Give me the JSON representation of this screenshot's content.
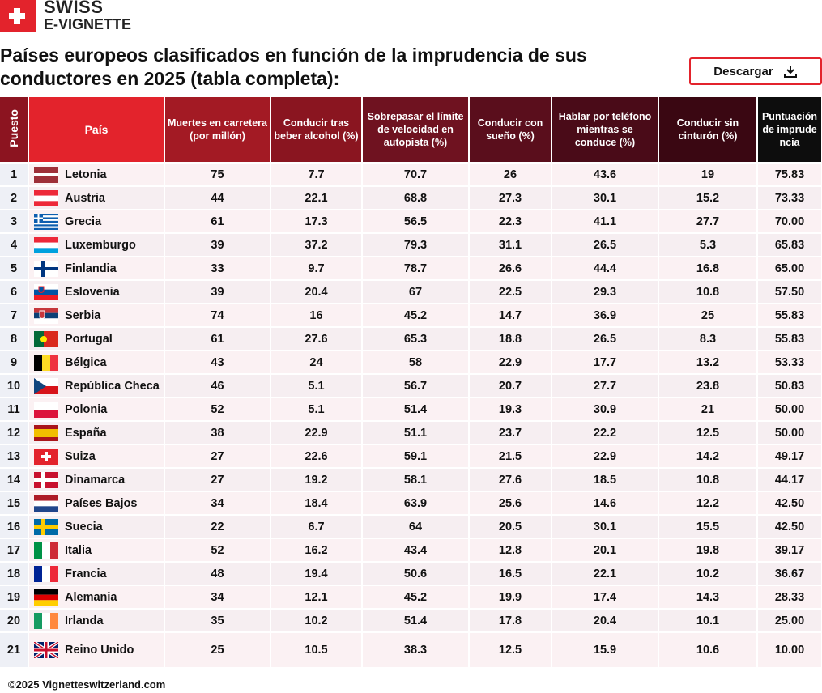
{
  "logo": {
    "line1": "SWISS",
    "line2": "E-VIGNETTE"
  },
  "title": "Países europeos clasificados en función de la imprudencia de sus conductores en 2025 (tabla completa):",
  "button": "Descargar",
  "table": {
    "headers": [
      "Puesto",
      "País",
      "Muertes en carretera (por millón)",
      "Conducir tras beber alcohol (%)",
      "Sobrepasar el límite de velocidad en autopista (%)",
      "Conducir con sueño (%)",
      "Hablar por teléfono mientras se conduce (%)",
      "Conducir sin cinturón (%)",
      "Puntuación de imprudencia"
    ],
    "rows": [
      [
        "1",
        "Letonia",
        "75",
        "7.7",
        "70.7",
        "26",
        "43.6",
        "19",
        "75.83"
      ],
      [
        "2",
        "Austria",
        "44",
        "22.1",
        "68.8",
        "27.3",
        "30.1",
        "15.2",
        "73.33"
      ],
      [
        "3",
        "Grecia",
        "61",
        "17.3",
        "56.5",
        "22.3",
        "41.1",
        "27.7",
        "70.00"
      ],
      [
        "4",
        "Luxemburgo",
        "39",
        "37.2",
        "79.3",
        "31.1",
        "26.5",
        "5.3",
        "65.83"
      ],
      [
        "5",
        "Finlandia",
        "33",
        "9.7",
        "78.7",
        "26.6",
        "44.4",
        "16.8",
        "65.00"
      ],
      [
        "6",
        "Eslovenia",
        "39",
        "20.4",
        "67",
        "22.5",
        "29.3",
        "10.8",
        "57.50"
      ],
      [
        "7",
        "Serbia",
        "74",
        "16",
        "45.2",
        "14.7",
        "36.9",
        "25",
        "55.83"
      ],
      [
        "8",
        "Portugal",
        "61",
        "27.6",
        "65.3",
        "18.8",
        "26.5",
        "8.3",
        "55.83"
      ],
      [
        "9",
        "Bélgica",
        "43",
        "24",
        "58",
        "22.9",
        "17.7",
        "13.2",
        "53.33"
      ],
      [
        "10",
        "República Checa",
        "46",
        "5.1",
        "56.7",
        "20.7",
        "27.7",
        "23.8",
        "50.83"
      ],
      [
        "11",
        "Polonia",
        "52",
        "5.1",
        "51.4",
        "19.3",
        "30.9",
        "21",
        "50.00"
      ],
      [
        "12",
        "España",
        "38",
        "22.9",
        "51.1",
        "23.7",
        "22.2",
        "12.5",
        "50.00"
      ],
      [
        "13",
        "Suiza",
        "27",
        "22.6",
        "59.1",
        "21.5",
        "22.9",
        "14.2",
        "49.17"
      ],
      [
        "14",
        "Dinamarca",
        "27",
        "19.2",
        "58.1",
        "27.6",
        "18.5",
        "10.8",
        "44.17"
      ],
      [
        "15",
        "Países Bajos",
        "34",
        "18.4",
        "63.9",
        "25.6",
        "14.6",
        "12.2",
        "42.50"
      ],
      [
        "16",
        "Suecia",
        "22",
        "6.7",
        "64",
        "20.5",
        "30.1",
        "15.5",
        "42.50"
      ],
      [
        "17",
        "Italia",
        "52",
        "16.2",
        "43.4",
        "12.8",
        "20.1",
        "19.8",
        "39.17"
      ],
      [
        "18",
        "Francia",
        "48",
        "19.4",
        "50.6",
        "16.5",
        "22.1",
        "10.2",
        "36.67"
      ],
      [
        "19",
        "Alemania",
        "34",
        "12.1",
        "45.2",
        "19.9",
        "17.4",
        "14.3",
        "28.33"
      ],
      [
        "20",
        "Irlanda",
        "35",
        "10.2",
        "51.4",
        "17.8",
        "20.4",
        "10.1",
        "25.00"
      ],
      [
        "21",
        "Reino Unido",
        "25",
        "10.5",
        "38.3",
        "12.5",
        "15.9",
        "10.6",
        "10.00"
      ]
    ]
  },
  "footer": "©2025 Vignetteswitzerland.com"
}
